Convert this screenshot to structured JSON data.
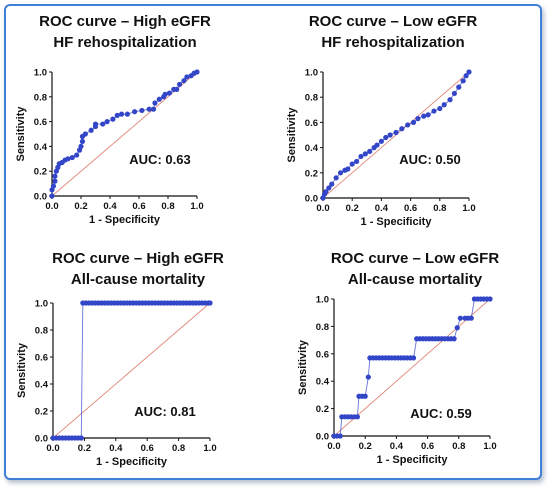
{
  "chart_data": [
    {
      "type": "line",
      "title": "ROC curve – High eGFR",
      "subtitle": "HF rehospitalization",
      "xlabel": "1 - Specificity",
      "ylabel": "Sensitivity",
      "auc_label": "AUC: 0.63",
      "xlim": [
        0,
        1
      ],
      "ylim": [
        0,
        1
      ],
      "xticks": [
        "0.0",
        "0.2",
        "0.4",
        "0.6",
        "0.8",
        "1.0"
      ],
      "yticks": [
        "0.0",
        "0.2",
        "0.4",
        "0.6",
        "0.8",
        "1.0"
      ],
      "colors": {
        "curve": "#3346c8",
        "diagonal": "#e08a7a"
      },
      "series": [
        {
          "x": [
            0,
            0,
            0.01,
            0.02,
            0.02,
            0.03,
            0.04,
            0.05,
            0.07,
            0.09,
            0.11,
            0.14,
            0.17,
            0.19,
            0.2,
            0.21,
            0.21,
            0.23,
            0.27,
            0.3,
            0.3,
            0.35,
            0.38,
            0.42,
            0.45,
            0.48,
            0.52,
            0.57,
            0.62,
            0.67,
            0.7,
            0.71,
            0.74,
            0.77,
            0.78,
            0.81,
            0.84,
            0.86,
            0.88,
            0.91,
            0.93,
            0.96,
            0.98,
            1.0
          ],
          "y": [
            0,
            0.05,
            0.08,
            0.12,
            0.16,
            0.2,
            0.23,
            0.26,
            0.27,
            0.29,
            0.3,
            0.31,
            0.33,
            0.37,
            0.4,
            0.44,
            0.48,
            0.5,
            0.53,
            0.56,
            0.58,
            0.58,
            0.6,
            0.62,
            0.65,
            0.66,
            0.66,
            0.68,
            0.69,
            0.7,
            0.7,
            0.75,
            0.78,
            0.8,
            0.82,
            0.83,
            0.86,
            0.86,
            0.9,
            0.93,
            0.96,
            0.97,
            0.99,
            1.0
          ]
        }
      ]
    },
    {
      "type": "line",
      "title": "ROC curve – Low eGFR",
      "subtitle": "HF rehospitalization",
      "xlabel": "1 - Specificity",
      "ylabel": "Sensitivity",
      "auc_label": "AUC: 0.50",
      "xlim": [
        0,
        1
      ],
      "ylim": [
        0,
        1
      ],
      "xticks": [
        "0.0",
        "0.2",
        "0.4",
        "0.6",
        "0.8",
        "1.0"
      ],
      "yticks": [
        "0.0",
        "0.2",
        "0.4",
        "0.6",
        "0.8",
        "1.0"
      ],
      "colors": {
        "curve": "#3346c8",
        "diagonal": "#e08a7a"
      },
      "series": [
        {
          "x": [
            0,
            0.01,
            0.02,
            0.04,
            0.06,
            0.09,
            0.12,
            0.15,
            0.17,
            0.2,
            0.23,
            0.26,
            0.29,
            0.32,
            0.35,
            0.37,
            0.4,
            0.43,
            0.46,
            0.5,
            0.54,
            0.58,
            0.62,
            0.65,
            0.69,
            0.72,
            0.76,
            0.8,
            0.83,
            0.87,
            0.9,
            0.93,
            0.96,
            0.98,
            1.0
          ],
          "y": [
            0,
            0.03,
            0.05,
            0.08,
            0.11,
            0.16,
            0.2,
            0.22,
            0.23,
            0.27,
            0.29,
            0.33,
            0.35,
            0.37,
            0.4,
            0.42,
            0.45,
            0.48,
            0.5,
            0.52,
            0.55,
            0.58,
            0.6,
            0.63,
            0.65,
            0.66,
            0.69,
            0.71,
            0.74,
            0.78,
            0.83,
            0.88,
            0.93,
            0.97,
            1.0
          ]
        }
      ]
    },
    {
      "type": "line",
      "title": "ROC curve – High eGFR",
      "subtitle": "All-cause mortality",
      "xlabel": "1 - Specificity",
      "ylabel": "Sensitivity",
      "auc_label": "AUC: 0.81",
      "xlim": [
        0,
        1
      ],
      "ylim": [
        0,
        1
      ],
      "xticks": [
        "0.0",
        "0.2",
        "0.4",
        "0.6",
        "0.8",
        "1.0"
      ],
      "yticks": [
        "0.0",
        "0.2",
        "0.4",
        "0.6",
        "0.8",
        "1.0"
      ],
      "colors": {
        "curve": "#3346c8",
        "diagonal": "#e08a7a"
      },
      "series": [
        {
          "x": [
            0,
            0.02,
            0.04,
            0.06,
            0.08,
            0.1,
            0.12,
            0.14,
            0.16,
            0.18,
            0.19,
            0.21,
            0.23,
            0.25,
            0.27,
            0.29,
            0.31,
            0.33,
            0.35,
            0.37,
            0.39,
            0.41,
            0.43,
            0.45,
            0.47,
            0.49,
            0.51,
            0.53,
            0.55,
            0.57,
            0.59,
            0.61,
            0.63,
            0.65,
            0.67,
            0.69,
            0.71,
            0.73,
            0.75,
            0.77,
            0.79,
            0.81,
            0.83,
            0.85,
            0.87,
            0.89,
            0.91,
            0.93,
            0.95,
            0.97,
            0.99,
            1.0
          ],
          "y": [
            0,
            0,
            0,
            0,
            0,
            0,
            0,
            0,
            0,
            0,
            1.0,
            1.0,
            1.0,
            1.0,
            1.0,
            1.0,
            1.0,
            1.0,
            1.0,
            1.0,
            1.0,
            1.0,
            1.0,
            1.0,
            1.0,
            1.0,
            1.0,
            1.0,
            1.0,
            1.0,
            1.0,
            1.0,
            1.0,
            1.0,
            1.0,
            1.0,
            1.0,
            1.0,
            1.0,
            1.0,
            1.0,
            1.0,
            1.0,
            1.0,
            1.0,
            1.0,
            1.0,
            1.0,
            1.0,
            1.0,
            1.0,
            1.0
          ]
        }
      ]
    },
    {
      "type": "line",
      "title": "ROC curve – Low eGFR",
      "subtitle": "All-cause mortality",
      "xlabel": "1 - Specificity",
      "ylabel": "Sensitivity",
      "auc_label": "AUC: 0.59",
      "xlim": [
        0,
        1
      ],
      "ylim": [
        0,
        1
      ],
      "xticks": [
        "0.0",
        "0.2",
        "0.4",
        "0.6",
        "0.8",
        "1.0"
      ],
      "yticks": [
        "0.0",
        "0.2",
        "0.4",
        "0.6",
        "0.8",
        "1.0"
      ],
      "colors": {
        "curve": "#3346c8",
        "diagonal": "#e08a7a"
      },
      "series": [
        {
          "x": [
            0,
            0.02,
            0.04,
            0.05,
            0.07,
            0.09,
            0.11,
            0.13,
            0.15,
            0.16,
            0.18,
            0.2,
            0.22,
            0.23,
            0.25,
            0.27,
            0.29,
            0.31,
            0.33,
            0.35,
            0.37,
            0.39,
            0.41,
            0.43,
            0.45,
            0.47,
            0.49,
            0.51,
            0.53,
            0.55,
            0.57,
            0.59,
            0.61,
            0.63,
            0.65,
            0.67,
            0.69,
            0.71,
            0.73,
            0.75,
            0.77,
            0.79,
            0.81,
            0.84,
            0.86,
            0.88,
            0.9,
            0.92,
            0.94,
            0.96,
            0.98,
            1.0
          ],
          "y": [
            0,
            0,
            0,
            0.14,
            0.14,
            0.14,
            0.14,
            0.14,
            0.14,
            0.29,
            0.29,
            0.29,
            0.43,
            0.57,
            0.57,
            0.57,
            0.57,
            0.57,
            0.57,
            0.57,
            0.57,
            0.57,
            0.57,
            0.57,
            0.57,
            0.57,
            0.57,
            0.57,
            0.71,
            0.71,
            0.71,
            0.71,
            0.71,
            0.71,
            0.71,
            0.71,
            0.71,
            0.71,
            0.71,
            0.71,
            0.71,
            0.79,
            0.86,
            0.86,
            0.86,
            0.86,
            1.0,
            1.0,
            1.0,
            1.0,
            1.0,
            1.0
          ]
        }
      ]
    }
  ]
}
